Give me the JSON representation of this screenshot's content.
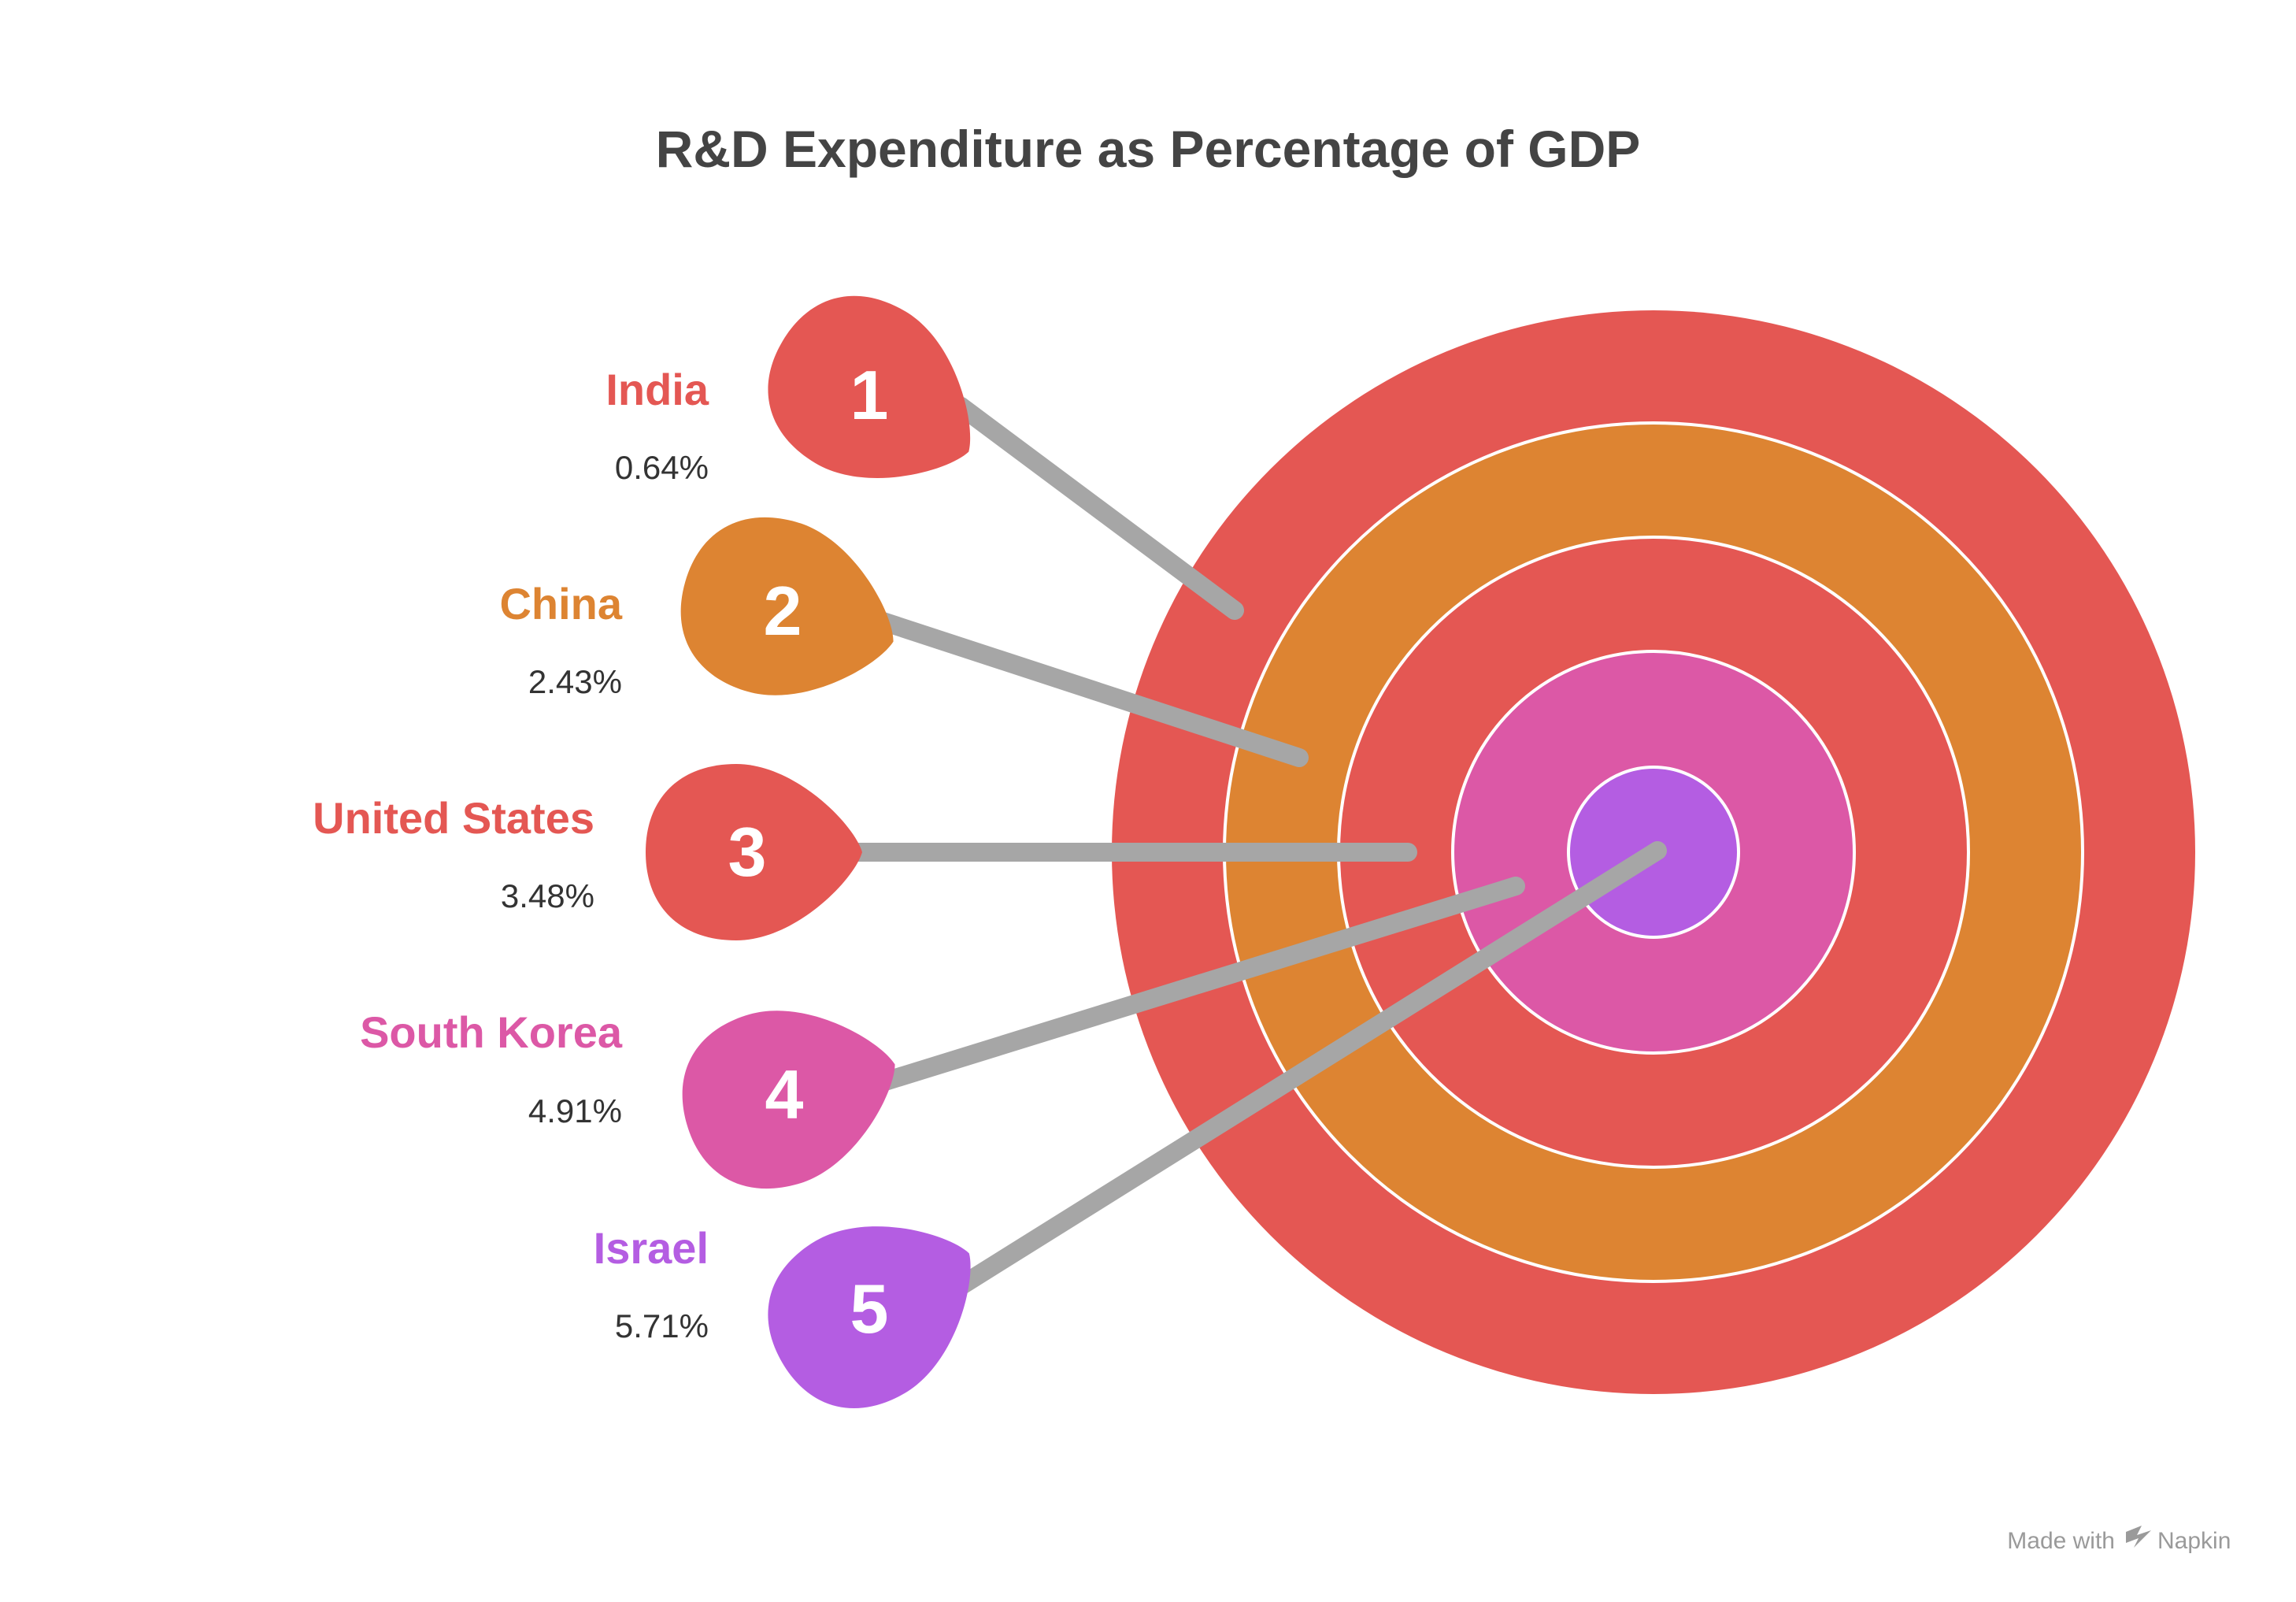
{
  "title": "R&D Expenditure as Percentage of GDP",
  "colors": {
    "red": "#E45753",
    "orange": "#DD8432",
    "pink": "#DC58A6",
    "purple": "#B45DE2",
    "shaft": "#A6A6A6",
    "ring_border": "#FFFFFF"
  },
  "target_rings": [
    "red",
    "orange",
    "red",
    "pink",
    "purple"
  ],
  "items": [
    {
      "rank": "1",
      "name": "India",
      "value": "0.64%",
      "color": "red"
    },
    {
      "rank": "2",
      "name": "China",
      "value": "2.43%",
      "color": "orange"
    },
    {
      "rank": "3",
      "name": "United States",
      "value": "3.48%",
      "color": "red"
    },
    {
      "rank": "4",
      "name": "South Korea",
      "value": "4.91%",
      "color": "pink"
    },
    {
      "rank": "5",
      "name": "Israel",
      "value": "5.71%",
      "color": "purple"
    }
  ],
  "credit": {
    "prefix": "Made with",
    "brand": "Napkin"
  }
}
